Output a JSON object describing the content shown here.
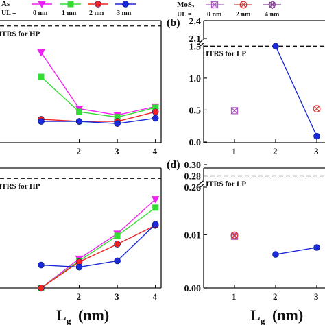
{
  "legend_left": {
    "material": "As",
    "ul_label": "UL =",
    "entries": [
      {
        "label": "0 nm",
        "color": "#ee22ee",
        "marker": "triangle-down"
      },
      {
        "label": "1 nm",
        "color": "#33dd33",
        "marker": "square"
      },
      {
        "label": "2 nm",
        "color": "#ee2222",
        "marker": "circle"
      },
      {
        "label": "3 nm",
        "color": "#1a2ad8",
        "marker": "circle"
      }
    ]
  },
  "legend_right": {
    "material": "MoS₂",
    "ul_label": "UL =",
    "entries": [
      {
        "label": "0 nm",
        "color": "#b058c8",
        "marker": "x-square"
      },
      {
        "label": "2 nm",
        "color": "#d63c3c",
        "marker": "x-circle"
      },
      {
        "label": "4 nm",
        "color": "#8a3c9a",
        "marker": "x-diamond"
      }
    ]
  },
  "chart_data": [
    {
      "panel": "a",
      "type": "line",
      "x": [
        1,
        2,
        3,
        4
      ],
      "xlim": [
        1,
        4.15
      ],
      "ylim": [
        0,
        1.15
      ],
      "reference_line": {
        "label": "ITRS for HP",
        "y": 1.1
      },
      "series": [
        {
          "name": "0 nm",
          "color": "#ee22ee",
          "marker": "triangle-down",
          "x": [
            1,
            2,
            3,
            4
          ],
          "y": [
            0.85,
            0.32,
            0.26,
            0.34
          ]
        },
        {
          "name": "1 nm",
          "color": "#33dd33",
          "marker": "square",
          "x": [
            1,
            2,
            3,
            4
          ],
          "y": [
            0.62,
            0.29,
            0.24,
            0.33
          ]
        },
        {
          "name": "2 nm",
          "color": "#ee2222",
          "marker": "circle",
          "x": [
            1,
            2,
            3,
            4
          ],
          "y": [
            0.22,
            0.2,
            0.2,
            0.29
          ]
        },
        {
          "name": "3 nm",
          "color": "#1a2ad8",
          "marker": "circle",
          "x": [
            1,
            2,
            3,
            4
          ],
          "y": [
            0.2,
            0.2,
            0.18,
            0.23
          ]
        }
      ],
      "x_tick_labels": [
        "2",
        "3",
        "4"
      ],
      "y_tick_labels": []
    },
    {
      "panel": "b",
      "type": "line",
      "x_tick_labels": [
        "1",
        "2",
        "3"
      ],
      "y_tick_labels": [
        "0.0",
        "0.5",
        "1.0",
        "1.5",
        "2.1",
        "2.4"
      ],
      "axis_break": true,
      "ylim_lower": [
        0,
        1.6
      ],
      "ylim_upper": [
        2.1,
        2.4
      ],
      "reference_line": {
        "label": "ITRS for LP",
        "y": 1.5
      },
      "series": [
        {
          "name": "0 nm",
          "color": "#b058c8",
          "marker": "x-square",
          "x": [
            1
          ],
          "y": [
            0.49
          ]
        },
        {
          "name": "2 nm",
          "color": "#d63c3c",
          "marker": "x-circle",
          "x": [
            3
          ],
          "y": [
            0.52
          ]
        },
        {
          "name": "3 nm",
          "color": "#1a2ad8",
          "marker": "circle",
          "x": [
            2,
            3
          ],
          "y": [
            1.5,
            0.09
          ]
        }
      ]
    },
    {
      "panel": "c",
      "type": "line",
      "x": [
        1,
        2,
        3,
        4
      ],
      "xlim": [
        1,
        4.15
      ],
      "ylim": [
        0,
        1.15
      ],
      "reference_line": {
        "label": "ITRS for HP",
        "y": 1.05
      },
      "series": [
        {
          "name": "0 nm",
          "color": "#ee22ee",
          "marker": "triangle-down",
          "x": [
            1,
            2,
            3,
            4
          ],
          "y": [
            0.0,
            0.28,
            0.52,
            0.85
          ]
        },
        {
          "name": "1 nm",
          "color": "#33dd33",
          "marker": "square",
          "x": [
            1,
            2,
            3,
            4
          ],
          "y": [
            0.0,
            0.26,
            0.5,
            0.77
          ]
        },
        {
          "name": "2 nm",
          "color": "#ee2222",
          "marker": "circle",
          "x": [
            1,
            2,
            3,
            4
          ],
          "y": [
            0.0,
            0.25,
            0.42,
            0.6
          ]
        },
        {
          "name": "3 nm",
          "color": "#1a2ad8",
          "marker": "circle",
          "x": [
            1,
            2,
            3,
            4
          ],
          "y": [
            0.22,
            0.2,
            0.26,
            0.61
          ]
        }
      ],
      "x_tick_labels": [
        "2",
        "3",
        "4"
      ],
      "y_tick_labels": []
    },
    {
      "panel": "d",
      "type": "line",
      "x_tick_labels": [
        "1",
        "2",
        "3"
      ],
      "y_tick_labels": [
        "0.00",
        "0.01",
        "0.26",
        "0.28",
        "0.30"
      ],
      "axis_break": true,
      "ylim_lower": [
        0,
        0.017
      ],
      "ylim_upper": [
        0.26,
        0.3
      ],
      "reference_line": {
        "label": "ITRS for LP",
        "y": 0.28
      },
      "series": [
        {
          "name": "0 nm",
          "color": "#b058c8",
          "marker": "x-square",
          "x": [
            1
          ],
          "y": [
            0.0097
          ]
        },
        {
          "name": "2 nm",
          "color": "#d63c3c",
          "marker": "x-circle",
          "x": [
            1
          ],
          "y": [
            0.0099
          ]
        },
        {
          "name": "3 nm",
          "color": "#1a2ad8",
          "marker": "circle",
          "x": [
            2,
            3
          ],
          "y": [
            0.0063,
            0.0076
          ]
        }
      ]
    }
  ],
  "panel_labels": {
    "b": "(b)",
    "d": "(d)"
  },
  "xlabel": {
    "main": "L",
    "sub": "g",
    "unit": "(nm)"
  }
}
